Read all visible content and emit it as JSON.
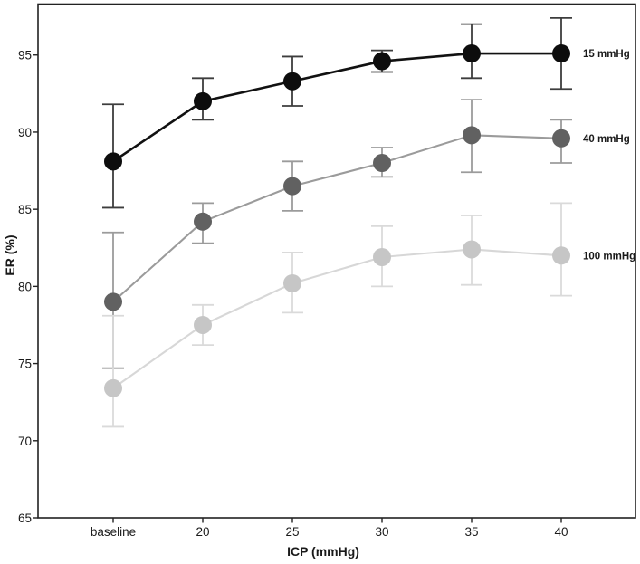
{
  "chart_data": {
    "type": "line",
    "title": "",
    "xlabel": "ICP (mmHg)",
    "ylabel": "ER (%)",
    "categories": [
      "baseline",
      "20",
      "25",
      "30",
      "35",
      "40"
    ],
    "y_ticks": [
      65,
      70,
      75,
      80,
      85,
      90,
      95
    ],
    "ylim": [
      65,
      98.3
    ],
    "grid": false,
    "error_bars": true,
    "legend_position": "labels-right-of-last-point",
    "axis_color": "#222222",
    "series": [
      {
        "name": "15 mmHg",
        "point_color": "#0d0d0d",
        "line_color": "#111111",
        "error_color": "#3d3d3d",
        "line_width": 2.6,
        "values": [
          88.1,
          92.0,
          93.3,
          94.6,
          95.1,
          95.1
        ],
        "err_low": [
          85.1,
          90.8,
          91.7,
          93.9,
          93.5,
          92.8
        ],
        "err_high": [
          91.8,
          93.5,
          94.9,
          95.3,
          97.0,
          97.4
        ]
      },
      {
        "name": "40 mmHg",
        "point_color": "#616161",
        "line_color": "#9b9b9b",
        "error_color": "#9b9b9b",
        "line_width": 2.1,
        "values": [
          79.0,
          84.2,
          86.5,
          88.0,
          89.8,
          89.6
        ],
        "err_low": [
          74.7,
          82.8,
          84.9,
          87.1,
          87.4,
          88.0
        ],
        "err_high": [
          83.5,
          85.4,
          88.1,
          89.0,
          92.1,
          90.8
        ]
      },
      {
        "name": "100 mmHg",
        "point_color": "#c6c6c6",
        "line_color": "#d7d7d7",
        "error_color": "#dadada",
        "line_width": 2.1,
        "values": [
          73.4,
          77.5,
          80.2,
          81.9,
          82.4,
          82.0
        ],
        "err_low": [
          70.9,
          76.2,
          78.3,
          80.0,
          80.1,
          79.4
        ],
        "err_high": [
          78.1,
          78.8,
          82.2,
          83.9,
          84.6,
          85.4
        ]
      }
    ]
  }
}
